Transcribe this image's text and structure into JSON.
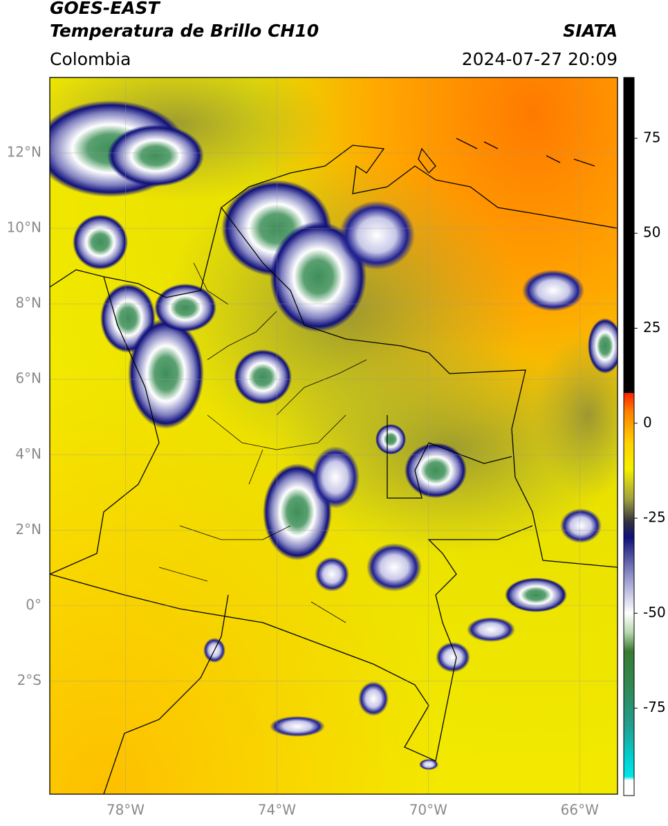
{
  "header": {
    "title": "GOES-EAST",
    "subtitle": "Temperatura de Brillo CH10",
    "source": "SIATA",
    "region": "Colombia",
    "timestamp": "2024-07-27 20:09"
  },
  "map": {
    "xlim": [
      -80,
      -65
    ],
    "ylim": [
      -5,
      14
    ],
    "grid": true,
    "xticks": [
      {
        "value": -78,
        "label": "78°W"
      },
      {
        "value": -74,
        "label": "74°W"
      },
      {
        "value": -70,
        "label": "70°W"
      },
      {
        "value": -66,
        "label": "66°W"
      }
    ],
    "yticks": [
      {
        "value": 12,
        "label": "12°N"
      },
      {
        "value": 10,
        "label": "10°N"
      },
      {
        "value": 8,
        "label": "8°N"
      },
      {
        "value": 6,
        "label": "6°N"
      },
      {
        "value": 4,
        "label": "4°N"
      },
      {
        "value": 2,
        "label": "2°N"
      },
      {
        "value": 0,
        "label": "0°"
      },
      {
        "value": -2,
        "label": "2°S"
      }
    ]
  },
  "colorbar": {
    "lim": [
      -98,
      91
    ],
    "ticks": [
      75,
      50,
      25,
      0,
      -25,
      -50,
      -75
    ],
    "stops": [
      {
        "value": -98,
        "color": "#ffffff"
      },
      {
        "value": -94,
        "color": "#ffffff"
      },
      {
        "value": -93,
        "color": "#00e5e5"
      },
      {
        "value": -88,
        "color": "#00d0d0"
      },
      {
        "value": -80,
        "color": "#20a090"
      },
      {
        "value": -70,
        "color": "#2e8b57"
      },
      {
        "value": -60,
        "color": "#3a7a30"
      },
      {
        "value": -55,
        "color": "#b8d8b0"
      },
      {
        "value": -50,
        "color": "#ffffff"
      },
      {
        "value": -40,
        "color": "#9090c8"
      },
      {
        "value": -30,
        "color": "#10107a"
      },
      {
        "value": -26,
        "color": "#303040"
      },
      {
        "value": -20,
        "color": "#a0a040"
      },
      {
        "value": -12,
        "color": "#f4f000"
      },
      {
        "value": -5,
        "color": "#ffd000"
      },
      {
        "value": 3,
        "color": "#ff8000"
      },
      {
        "value": 8,
        "color": "#ff2000"
      },
      {
        "value": 8.01,
        "color": "#000000"
      },
      {
        "value": 91,
        "color": "#000000"
      }
    ]
  }
}
